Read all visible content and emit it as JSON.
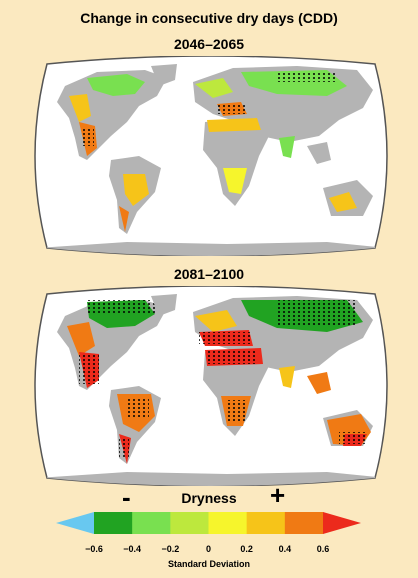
{
  "title": "Change in consecutive dry days (CDD)",
  "maps": [
    {
      "period": "2046–2065"
    },
    {
      "period": "2081–2100"
    }
  ],
  "legend": {
    "label": "Dryness",
    "minus": "-",
    "plus": "+",
    "ticks": [
      "−0.6",
      "−0.4",
      "−0.2",
      "0",
      "0.2",
      "0.4",
      "0.6"
    ],
    "tick_values": [
      -0.6,
      -0.4,
      -0.2,
      0,
      0.2,
      0.4,
      0.6
    ],
    "units": "Standard Deviation",
    "colors": [
      "#68c8f0",
      "#21a322",
      "#79e050",
      "#bde83d",
      "#f6f52c",
      "#f6c419",
      "#f07a14",
      "#ec2a1c"
    ]
  },
  "colors": {
    "background": "#fbe9c0",
    "ocean": "#ffffff",
    "no_change_land": "#b4b4b4",
    "outline": "#555555"
  }
}
